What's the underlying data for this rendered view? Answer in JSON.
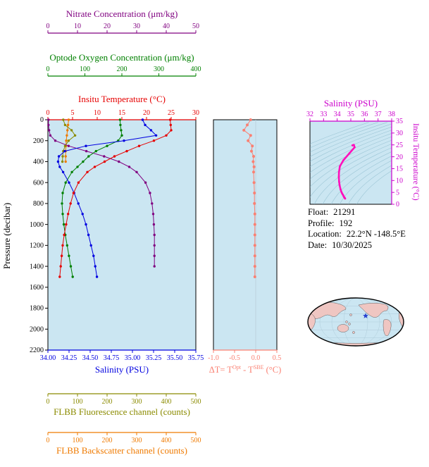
{
  "colors": {
    "plot_bg": "#cbe6f2",
    "nitrate": "#800080",
    "oxygen": "#008000",
    "temperature": "#e60000",
    "salinity": "#0000e0",
    "fluorescence": "#8b8b00",
    "backscatter": "#ef7a00",
    "dt": "#fa8072",
    "ts_axis": "#cc00cc",
    "ts_curve": "#ff10bb",
    "contour": "#88b6c9",
    "map_ocean": "#cbe6f2",
    "map_land": "#efc6c2",
    "marker": "#2741cf"
  },
  "info": {
    "float_label": "Float:",
    "float_value": "21291",
    "profile_label": "Profile:",
    "profile_value": "192",
    "location_label": "Location:",
    "location_value": "22.2°N -148.5°E",
    "date_label": "Date:",
    "date_value": "10/30/2025"
  },
  "chart_data": [
    {
      "id": "profiles",
      "type": "line",
      "title": "Argo float multi-sensor depth profiles",
      "ylabel": "Pressure (decibar)",
      "ylim": [
        0,
        2200
      ],
      "yticks": [
        0,
        200,
        400,
        600,
        800,
        1000,
        1200,
        1400,
        1600,
        1800,
        2000,
        2200
      ],
      "grid": false,
      "axes": [
        {
          "id": "temperature",
          "label": "Insitu Temperature (°C)",
          "color_key": "temperature",
          "range": [
            0,
            30
          ],
          "ticks": [
            0,
            5,
            10,
            15,
            20,
            25,
            30
          ],
          "side": "top",
          "offset": 0
        },
        {
          "id": "oxygen",
          "label": "Optode Oxygen Concentration (μm/kg)",
          "color_key": "oxygen",
          "range": [
            0,
            400
          ],
          "ticks": [
            0,
            100,
            200,
            300,
            400
          ],
          "side": "top",
          "offset": 1
        },
        {
          "id": "nitrate",
          "label": "Nitrate Concentration (μm/kg)",
          "color_key": "nitrate",
          "range": [
            0,
            50
          ],
          "ticks": [
            0,
            10,
            20,
            30,
            40,
            50
          ],
          "side": "top",
          "offset": 2
        },
        {
          "id": "salinity",
          "label": "Salinity (PSU)",
          "color_key": "salinity",
          "range": [
            34.0,
            35.75
          ],
          "ticks": [
            34.0,
            34.25,
            34.5,
            34.75,
            35.0,
            35.25,
            35.5,
            35.75
          ],
          "tick_labels": [
            "34.00",
            "34.25",
            "34.50",
            "34.75",
            "35.00",
            "35.25",
            "35.50",
            "35.75"
          ],
          "tick_size": 9.5,
          "side": "bottom",
          "offset": 0
        },
        {
          "id": "fluorescence",
          "label": "FLBB Fluorescence channel (counts)",
          "color_key": "fluorescence",
          "range": [
            0,
            500
          ],
          "ticks": [
            0,
            100,
            200,
            300,
            400,
            500
          ],
          "side": "bottom",
          "offset": 1
        },
        {
          "id": "backscatter",
          "label": "FLBB Backscatter channel (counts)",
          "color_key": "backscatter",
          "range": [
            0,
            500
          ],
          "ticks": [
            0,
            100,
            200,
            300,
            400,
            500
          ],
          "side": "bottom",
          "offset": 2
        }
      ],
      "series": [
        {
          "name": "FLBB Backscatter channel",
          "axis": "backscatter",
          "pressure": [
            0,
            50,
            100,
            150,
            200,
            250,
            300,
            350,
            400
          ],
          "values": [
            70,
            68,
            66,
            64,
            62,
            61,
            60,
            60,
            60
          ]
        },
        {
          "name": "FLBB Fluorescence channel",
          "axis": "fluorescence",
          "pressure": [
            0,
            50,
            100,
            150,
            200,
            250,
            300,
            350,
            400
          ],
          "values": [
            52,
            58,
            80,
            92,
            70,
            58,
            52,
            50,
            49
          ]
        },
        {
          "name": "Nitrate Concentration",
          "axis": "nitrate",
          "pressure": [
            0,
            50,
            100,
            150,
            200,
            250,
            300,
            350,
            400,
            450,
            500,
            600,
            700,
            800,
            900,
            1000,
            1100,
            1200,
            1300,
            1400
          ],
          "values": [
            0.2,
            0.2,
            0.4,
            0.8,
            2.5,
            7,
            13,
            19,
            24,
            27.5,
            30,
            33,
            34.5,
            35.2,
            35.6,
            35.8,
            36,
            36,
            36,
            36
          ]
        },
        {
          "name": "Optode Oxygen Concentration",
          "axis": "oxygen",
          "pressure": [
            0,
            50,
            100,
            150,
            200,
            250,
            300,
            350,
            400,
            450,
            500,
            600,
            700,
            800,
            900,
            1000,
            1100,
            1200,
            1300,
            1400,
            1500
          ],
          "values": [
            195,
            196,
            198,
            200,
            190,
            160,
            130,
            110,
            95,
            80,
            65,
            48,
            40,
            38,
            40,
            43,
            47,
            52,
            57,
            62,
            67
          ]
        },
        {
          "name": "Salinity",
          "axis": "salinity",
          "pressure": [
            0,
            50,
            100,
            150,
            200,
            250,
            300,
            350,
            400,
            450,
            500,
            600,
            700,
            800,
            900,
            1000,
            1100,
            1200,
            1300,
            1400,
            1500
          ],
          "values": [
            35.12,
            35.15,
            35.22,
            35.28,
            34.9,
            34.45,
            34.2,
            34.13,
            34.12,
            34.14,
            34.18,
            34.25,
            34.31,
            34.36,
            34.41,
            34.45,
            34.48,
            34.51,
            34.54,
            34.56,
            34.58
          ]
        },
        {
          "name": "Insitu Temperature",
          "axis": "temperature",
          "pressure": [
            0,
            50,
            100,
            150,
            200,
            250,
            300,
            350,
            400,
            450,
            500,
            600,
            700,
            800,
            900,
            1000,
            1100,
            1200,
            1300,
            1400,
            1500
          ],
          "values": [
            24.8,
            24.9,
            25.0,
            24.0,
            21.5,
            18.5,
            16.0,
            13.5,
            11.5,
            9.5,
            8.0,
            6.2,
            5.2,
            4.6,
            4.1,
            3.7,
            3.3,
            3.0,
            2.8,
            2.6,
            2.4
          ]
        }
      ]
    },
    {
      "id": "temp-difference",
      "type": "scatter",
      "xlabel_parts": {
        "p0": "ΔT= T",
        "s1": "Opt",
        "p1": " - T",
        "s2": "SBE",
        "p2": " (°C)"
      },
      "xlim": [
        -1.0,
        0.5
      ],
      "xticks": [
        -1.0,
        -0.5,
        0.0,
        0.5
      ],
      "xtick_labels": [
        "-1.0",
        "-0.5",
        "0.0",
        "0.5"
      ],
      "ylim": [
        0,
        2200
      ],
      "pressure": [
        0,
        50,
        100,
        150,
        200,
        250,
        300,
        350,
        400,
        450,
        500,
        600,
        700,
        800,
        900,
        1000,
        1100,
        1200,
        1300,
        1400,
        1500
      ],
      "values": [
        -0.12,
        -0.2,
        -0.28,
        -0.12,
        -0.18,
        -0.08,
        -0.1,
        -0.05,
        -0.06,
        -0.04,
        -0.05,
        -0.04,
        -0.03,
        -0.03,
        -0.02,
        -0.02,
        -0.02,
        -0.02,
        -0.02,
        -0.02,
        -0.02
      ]
    },
    {
      "id": "ts-diagram",
      "type": "line",
      "title": "Salinity (PSU)",
      "ylabel": "Insitu Temperature (°C)",
      "xlim": [
        32,
        38
      ],
      "xticks": [
        32,
        33,
        34,
        35,
        36,
        37,
        38
      ],
      "ylim": [
        0,
        35
      ],
      "yticks": [
        0,
        5,
        10,
        15,
        20,
        25,
        30,
        35
      ],
      "salinity": [
        35.12,
        35.15,
        35.22,
        35.28,
        34.9,
        34.45,
        34.2,
        34.13,
        34.12,
        34.14,
        34.18,
        34.25,
        34.31,
        34.36,
        34.41,
        34.45,
        34.48,
        34.51,
        34.54,
        34.56,
        34.58
      ],
      "temperature": [
        24.8,
        24.9,
        25.0,
        24.0,
        21.5,
        18.5,
        16.0,
        13.5,
        11.5,
        9.5,
        8.0,
        6.2,
        5.2,
        4.6,
        4.1,
        3.7,
        3.3,
        3.0,
        2.8,
        2.6,
        2.4
      ],
      "isopycnals": {
        "sigma_min": 21,
        "sigma_max": 28.5,
        "step": 0.5
      }
    }
  ]
}
